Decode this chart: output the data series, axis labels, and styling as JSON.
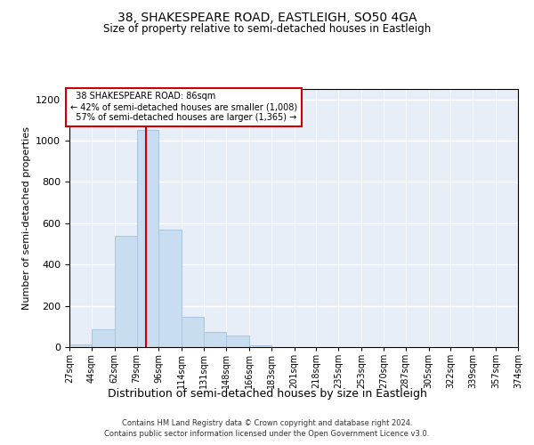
{
  "title": "38, SHAKESPEARE ROAD, EASTLEIGH, SO50 4GA",
  "subtitle": "Size of property relative to semi-detached houses in Eastleigh",
  "xlabel": "Distribution of semi-detached houses by size in Eastleigh",
  "ylabel": "Number of semi-detached properties",
  "footer_line1": "Contains HM Land Registry data © Crown copyright and database right 2024.",
  "footer_line2": "Contains public sector information licensed under the Open Government Licence v3.0.",
  "property_size": 86,
  "property_label": "38 SHAKESPEARE ROAD: 86sqm",
  "pct_smaller": 42,
  "count_smaller": 1008,
  "pct_larger": 57,
  "count_larger": 1365,
  "bar_color": "#c9ddf0",
  "bar_edge_color": "#a8c4e0",
  "red_line_color": "#cc0000",
  "annotation_box_color": "#cc0000",
  "bg_color": "#e8eef8",
  "grid_color": "#ffffff",
  "bin_edges": [
    27,
    44,
    62,
    79,
    96,
    114,
    131,
    148,
    166,
    183,
    201,
    218,
    235,
    253,
    270,
    287,
    305,
    322,
    339,
    357,
    374
  ],
  "bin_counts": [
    15,
    85,
    540,
    1050,
    570,
    145,
    75,
    55,
    10,
    0,
    0,
    0,
    0,
    0,
    0,
    0,
    0,
    0,
    0,
    0
  ],
  "ylim": [
    0,
    1250
  ],
  "yticks": [
    0,
    200,
    400,
    600,
    800,
    1000,
    1200
  ],
  "tick_labels": [
    "27sqm",
    "44sqm",
    "62sqm",
    "79sqm",
    "96sqm",
    "114sqm",
    "131sqm",
    "148sqm",
    "166sqm",
    "183sqm",
    "201sqm",
    "218sqm",
    "235sqm",
    "253sqm",
    "270sqm",
    "287sqm",
    "305sqm",
    "322sqm",
    "339sqm",
    "357sqm",
    "374sqm"
  ]
}
